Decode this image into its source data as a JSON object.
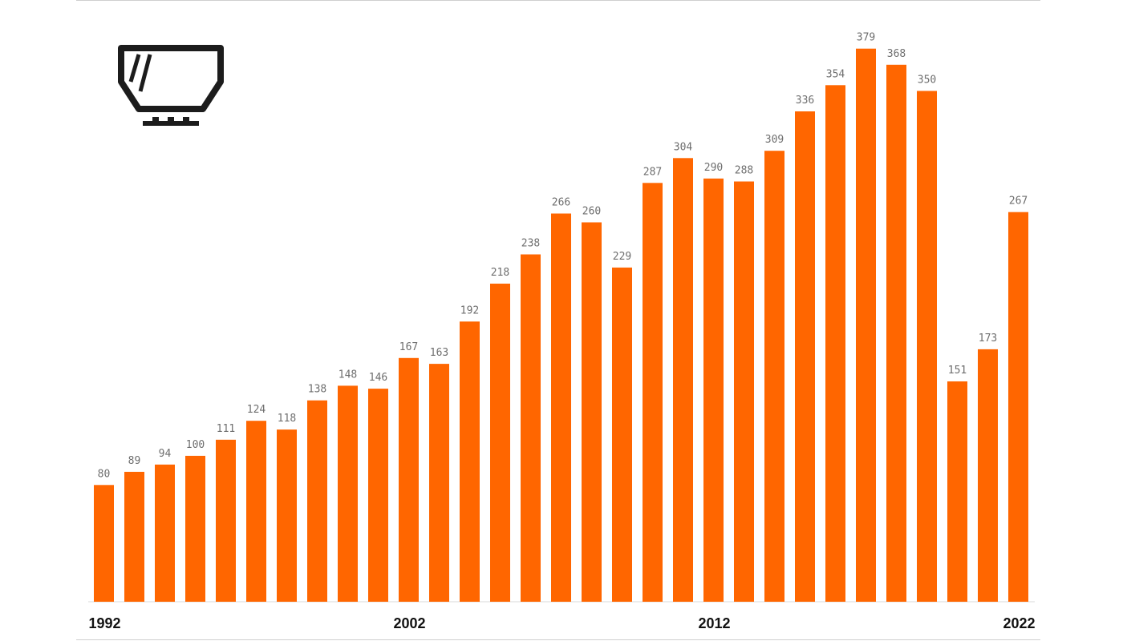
{
  "colors": {
    "bar": "#ff6600",
    "value_label": "#6e6e6e",
    "year_label": "#111111"
  },
  "icon": {
    "name": "windshield-icon"
  },
  "chart_data": {
    "type": "bar",
    "title": "",
    "xlabel": "",
    "ylabel": "",
    "categories": [
      "1992",
      "1993",
      "1994",
      "1995",
      "1996",
      "1997",
      "1998",
      "1999",
      "2000",
      "2001",
      "2002",
      "2003",
      "2004",
      "2005",
      "2006",
      "2007",
      "2008",
      "2009",
      "2010",
      "2011",
      "2012",
      "2013",
      "2014",
      "2015",
      "2016",
      "2017",
      "2018",
      "2019",
      "2020",
      "2021",
      "2022"
    ],
    "values": [
      80,
      89,
      94,
      100,
      111,
      124,
      118,
      138,
      148,
      146,
      167,
      163,
      192,
      218,
      238,
      266,
      260,
      229,
      287,
      304,
      290,
      288,
      309,
      336,
      354,
      379,
      368,
      350,
      151,
      173,
      267
    ],
    "value_labels": [
      "80",
      "89",
      "94",
      "100",
      "111",
      "124",
      "118",
      "138",
      "148",
      "146",
      "167",
      "163",
      "192",
      "218",
      "238",
      "266",
      "260",
      "229",
      "287",
      "304",
      "290",
      "288",
      "309",
      "336",
      "354",
      "379",
      "368",
      "350",
      "151",
      "173",
      "267"
    ],
    "x_tick_labels": [
      {
        "category": "1992",
        "text": "1992"
      },
      {
        "category": "2002",
        "text": "2002"
      },
      {
        "category": "2012",
        "text": "2012"
      },
      {
        "category": "2022",
        "text": "2022"
      }
    ],
    "ylim": [
      0,
      410
    ],
    "grid": false,
    "legend": "none"
  }
}
